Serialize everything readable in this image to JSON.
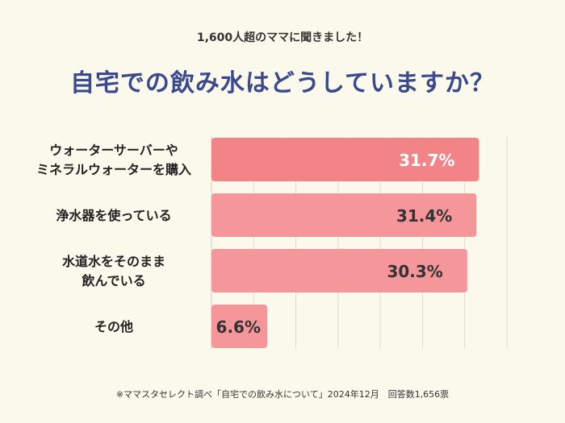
{
  "header": {
    "subtitle": "1,600人超のママに聞きました！",
    "title": "自宅での飲み水はどうしていますか？"
  },
  "colors": {
    "bar_top": "#f28487",
    "bar": "#f5979a",
    "title": "#3b4a8c",
    "background": "#fbf8ec"
  },
  "chart_data": {
    "type": "bar",
    "orientation": "horizontal",
    "categories": [
      [
        "ウォーターサーバーや",
        "ミネラルウォーターを購入"
      ],
      [
        "浄水器を使っている"
      ],
      [
        "水道水をそのまま",
        "飲んでいる"
      ],
      [
        "その他"
      ]
    ],
    "values": [
      31.7,
      31.4,
      30.3,
      6.6
    ],
    "value_labels": [
      "31.7%",
      "31.4%",
      "30.3%",
      "6.6%"
    ],
    "xlim": [
      0,
      35
    ],
    "grid": true,
    "unit": "%"
  },
  "footnote": "※ママスタセレクト調べ「自宅での飲み水について」2024年12月　回答数1,656票"
}
